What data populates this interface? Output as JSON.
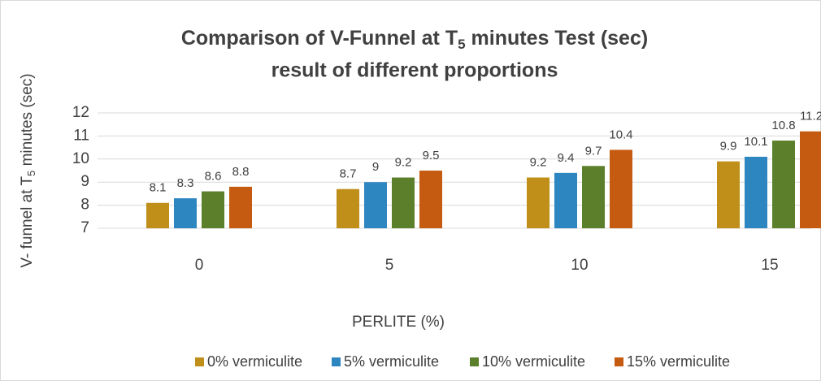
{
  "chart_data": {
    "type": "bar",
    "title": [
      "Comparison of  V-Funnel at T",
      "5",
      " minutes Test (sec)",
      "result of different proportions"
    ],
    "ylabel": [
      "V- funnel at T",
      "5",
      " minutes (sec)"
    ],
    "xlabel": "PERLITE (%)",
    "categories": [
      "0",
      "5",
      "10",
      "15"
    ],
    "series": [
      {
        "name": "0% vermiculite",
        "color": "#bf8f1a",
        "values": [
          8.1,
          8.7,
          9.2,
          9.9
        ]
      },
      {
        "name": "5% vermiculite",
        "color": "#2e86c1",
        "values": [
          8.3,
          9,
          9.4,
          10.1
        ]
      },
      {
        "name": "10% vermiculite",
        "color": "#5b7f2a",
        "values": [
          8.6,
          9.2,
          9.7,
          10.8
        ]
      },
      {
        "name": "15% vermiculite",
        "color": "#c55a11",
        "values": [
          8.8,
          9.5,
          10.4,
          11.2
        ]
      }
    ],
    "ylim": [
      7,
      12
    ],
    "yticks": [
      7,
      8,
      9,
      10,
      11,
      12
    ],
    "grid": true,
    "legend": "bottom"
  }
}
